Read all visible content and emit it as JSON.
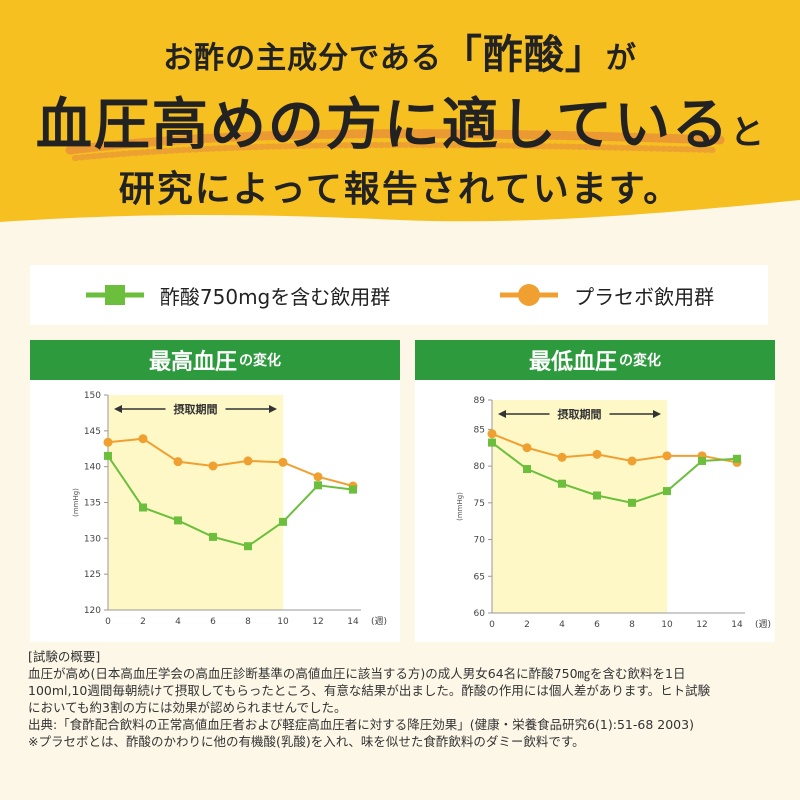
{
  "header": {
    "line1_pre": "お酢の主成分である",
    "line1_emph": "「酢酸」",
    "line1_post": "が",
    "line2_main": "血圧高めの方に適している",
    "line2_suffix": "と",
    "line3": "研究によって報告されています。"
  },
  "legend": {
    "vinegar": "酢酸750mgを含む飲用群",
    "placebo": "プラセボ飲用群"
  },
  "colors": {
    "vinegar": "#6cbf3c",
    "placebo": "#f0a030",
    "title_bg": "#2e9a3e",
    "header_bg": "#f7c021",
    "period_bg": "#fdf8c6"
  },
  "charts": {
    "systolic": {
      "title_main": "最高血圧",
      "title_suffix": "の変化"
    },
    "diastolic": {
      "title_main": "最低血圧",
      "title_suffix": "の変化"
    }
  },
  "chart_data": [
    {
      "type": "line",
      "title": "最高血圧の変化",
      "ylabel": "(mmHg)",
      "x_unit": "(週)",
      "period_label": "摂取期間",
      "period": [
        0,
        10
      ],
      "x": [
        0,
        2,
        4,
        6,
        8,
        10,
        12,
        14
      ],
      "xlim": [
        0,
        14
      ],
      "ylim": [
        120,
        150
      ],
      "yticks": [
        120,
        125,
        130,
        135,
        140,
        145,
        150
      ],
      "series": [
        {
          "name": "酢酸750mgを含む飲用群",
          "values": [
            141.5,
            134.3,
            132.5,
            130.2,
            128.9,
            132.3,
            137.4,
            136.8
          ]
        },
        {
          "name": "プラセボ飲用群",
          "values": [
            143.4,
            143.9,
            140.7,
            140.1,
            140.8,
            140.6,
            138.6,
            137.3
          ]
        }
      ]
    },
    {
      "type": "line",
      "title": "最低血圧の変化",
      "ylabel": "(mmHg)",
      "x_unit": "(週)",
      "period_label": "摂取期間",
      "period": [
        0,
        10
      ],
      "x": [
        0,
        2,
        4,
        6,
        8,
        10,
        12,
        14
      ],
      "xlim": [
        0,
        14
      ],
      "ylim": [
        60,
        89
      ],
      "yticks": [
        60,
        65,
        70,
        75,
        80,
        85,
        89
      ],
      "series": [
        {
          "name": "酢酸750mgを含む飲用群",
          "values": [
            83.2,
            79.6,
            77.6,
            76.0,
            75.0,
            76.6,
            80.7,
            81.0
          ]
        },
        {
          "name": "プラセボ飲用群",
          "values": [
            84.4,
            82.5,
            81.2,
            81.6,
            80.7,
            81.4,
            81.4,
            80.5
          ]
        }
      ]
    }
  ],
  "notes": {
    "heading": "[試験の概要]",
    "line1": "血圧が高め(日本高血圧学会の高血圧診断基準の高値血圧に該当する方)の成人男女64名に酢酸750㎎を含む飲料を1日",
    "line2": "100ml,10週間毎朝続けて摂取してもらったところ、有意な結果が出ました。酢酸の作用には個人差があります。ヒト試験",
    "line3": "においても約3割の方には効果が認められませんでした。",
    "line4": "出典:「食酢配合飲料の正常高値血圧者および軽症高血圧者に対する降圧効果」(健康・栄養食品研究6(1):51-68 2003)",
    "line5": "※プラセボとは、酢酸のかわりに他の有機酸(乳酸)を入れ、味を似せた食酢飲料のダミー飲料です。"
  }
}
